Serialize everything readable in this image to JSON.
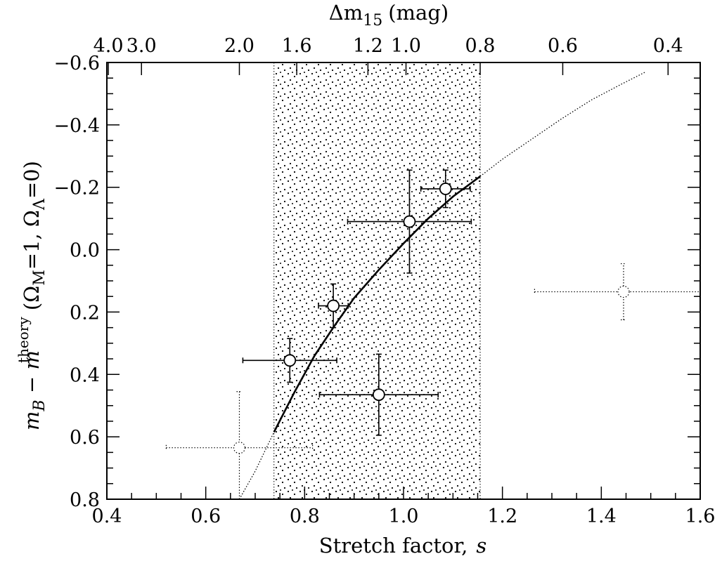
{
  "chart_data": {
    "type": "scatter",
    "title": "",
    "xlabel": "Stretch factor,",
    "xlabel_var": "s",
    "xlim": [
      0.4,
      1.6
    ],
    "x_ticks": [
      "0.4",
      "0.6",
      "0.8",
      "1.0",
      "1.2",
      "1.4",
      "1.6"
    ],
    "top_axis": {
      "label": "Δm",
      "label_sub": "15",
      "label_unit": "(mag)",
      "ticks": [
        {
          "label": "4.0",
          "s": 0.403
        },
        {
          "label": "3.0",
          "s": 0.47
        },
        {
          "label": "2.0",
          "s": 0.668
        },
        {
          "label": "1.6",
          "s": 0.784
        },
        {
          "label": "1.2",
          "s": 0.928
        },
        {
          "label": "1.0",
          "s": 1.005
        },
        {
          "label": "0.8",
          "s": 1.155
        },
        {
          "label": "0.6",
          "s": 1.322
        },
        {
          "label": "0.4",
          "s": 1.535
        }
      ]
    },
    "ylabel": {
      "main": "m",
      "sub_b": "B",
      "minus": " − ",
      "main2": "m",
      "sup": "theory",
      "paren_open": " (Ω",
      "sub_m": "M",
      "eq1": "=1, Ω",
      "sub_l": "Λ",
      "eq2": "=0)"
    },
    "ylim": [
      0.8,
      -0.6
    ],
    "y_ticks": [
      "−0.6",
      "−0.4",
      "−0.2",
      "0.0",
      "0.2",
      "0.4",
      "0.6",
      "0.8"
    ],
    "shaded_region": {
      "x_from": 0.738,
      "x_to": 1.155,
      "pattern": "dots"
    },
    "fit_curve": [
      [
        0.668,
        0.8
      ],
      [
        0.7,
        0.71
      ],
      [
        0.738,
        0.585
      ],
      [
        0.78,
        0.455
      ],
      [
        0.82,
        0.34
      ],
      [
        0.86,
        0.245
      ],
      [
        0.9,
        0.155
      ],
      [
        0.95,
        0.065
      ],
      [
        1.0,
        -0.02
      ],
      [
        1.05,
        -0.1
      ],
      [
        1.1,
        -0.17
      ],
      [
        1.155,
        -0.235
      ],
      [
        1.2,
        -0.29
      ],
      [
        1.26,
        -0.355
      ],
      [
        1.32,
        -0.42
      ],
      [
        1.38,
        -0.48
      ],
      [
        1.44,
        -0.53
      ],
      [
        1.49,
        -0.57
      ]
    ],
    "points": [
      {
        "x": 0.668,
        "y": 0.635,
        "x_err_lo": 0.148,
        "x_err_hi": 0.148,
        "y_err_lo": 0.18,
        "y_err_hi": 0.18,
        "style": "dotted"
      },
      {
        "x": 0.77,
        "y": 0.355,
        "x_err_lo": 0.095,
        "x_err_hi": 0.095,
        "y_err_lo": 0.07,
        "y_err_hi": 0.07,
        "style": "solid"
      },
      {
        "x": 0.858,
        "y": 0.18,
        "x_err_lo": 0.03,
        "x_err_hi": 0.03,
        "y_err_lo": 0.07,
        "y_err_hi": 0.07,
        "style": "solid"
      },
      {
        "x": 0.95,
        "y": 0.465,
        "x_err_lo": 0.12,
        "x_err_hi": 0.12,
        "y_err_lo": 0.13,
        "y_err_hi": 0.13,
        "style": "solid"
      },
      {
        "x": 1.012,
        "y": -0.09,
        "x_err_lo": 0.125,
        "x_err_hi": 0.125,
        "y_err_lo": 0.165,
        "y_err_hi": 0.165,
        "style": "solid"
      },
      {
        "x": 1.085,
        "y": -0.195,
        "x_err_lo": 0.05,
        "x_err_hi": 0.05,
        "y_err_lo": 0.06,
        "y_err_hi": 0.06,
        "style": "solid"
      },
      {
        "x": 1.445,
        "y": 0.135,
        "x_err_lo": 0.18,
        "x_err_hi": 0.18,
        "y_err_lo": 0.09,
        "y_err_hi": 0.09,
        "style": "dotted"
      }
    ],
    "grid": false,
    "legend": "none"
  }
}
